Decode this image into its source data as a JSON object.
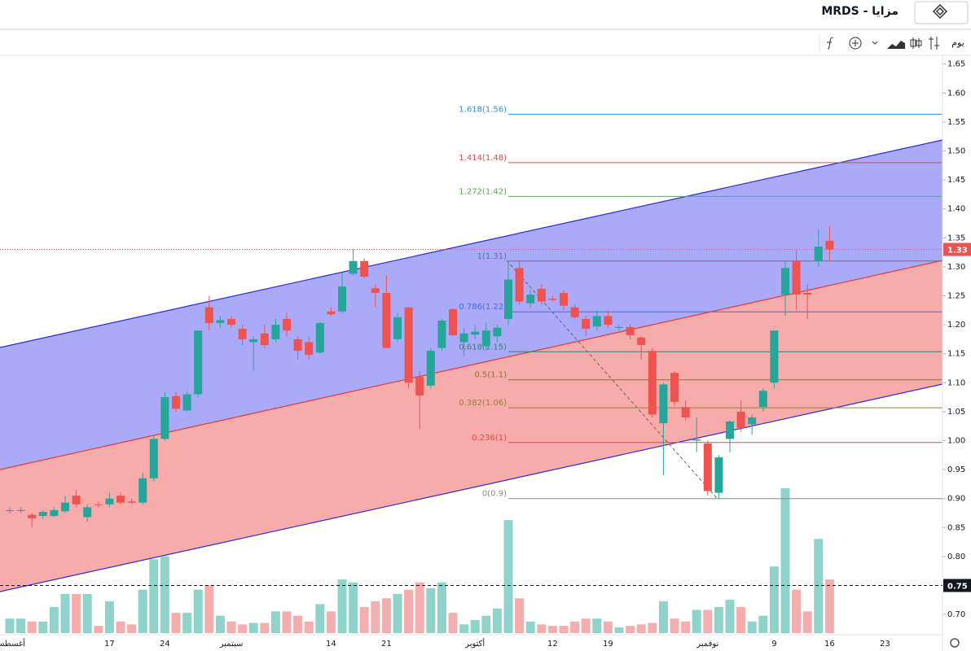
{
  "header": {
    "title": "MRDS - مزايا"
  },
  "toolbar": {
    "interval": "يوم"
  },
  "chart_data": {
    "type": "candlestick",
    "categories": [
      "أغسطس",
      null,
      null,
      null,
      null,
      null,
      null,
      null,
      null,
      "17",
      null,
      null,
      null,
      null,
      "24",
      null,
      null,
      null,
      null,
      null,
      "سبتمبر",
      null,
      null,
      null,
      null,
      null,
      null,
      null,
      null,
      "14",
      null,
      null,
      null,
      null,
      "21",
      null,
      null,
      null,
      null,
      null,
      null,
      null,
      "أكتوبر",
      null,
      null,
      null,
      null,
      null,
      null,
      "12",
      null,
      null,
      null,
      null,
      "19",
      null,
      null,
      null,
      null,
      null,
      null,
      null,
      null,
      "نوفمبر",
      null,
      null,
      null,
      null,
      null,
      "9",
      null,
      null,
      null,
      null,
      "16",
      null,
      null,
      null,
      null,
      "23"
    ],
    "open": [
      0.88,
      0.88,
      0.872,
      0.87,
      0.87,
      0.878,
      0.905,
      0.868,
      0.89,
      0.89,
      0.905,
      0.895,
      0.893,
      0.935,
      1.003,
      1.077,
      1.052,
      1.08,
      1.23,
      1.203,
      1.21,
      1.193,
      1.17,
      1.185,
      1.175,
      1.21,
      1.175,
      1.17,
      1.152,
      1.223,
      1.223,
      1.288,
      1.31,
      1.263,
      1.255,
      1.175,
      1.23,
      1.11,
      1.095,
      1.16,
      1.227,
      1.17,
      1.183,
      1.163,
      1.18,
      1.21,
      1.298,
      1.237,
      1.262,
      1.245,
      1.255,
      1.23,
      1.21,
      1.197,
      1.215,
      1.196,
      1.196,
      1.178,
      1.155,
      1.03,
      1.117,
      1.058,
      1.0,
      0.995,
      0.91,
      1.003,
      1.05,
      1.028,
      1.058,
      1.1,
      1.252,
      1.31,
      1.255,
      1.31,
      1.345,
      null,
      null,
      null,
      null,
      null
    ],
    "high": [
      0.885,
      0.885,
      0.875,
      0.88,
      0.885,
      0.905,
      0.915,
      0.89,
      0.895,
      0.91,
      0.91,
      0.9,
      0.945,
      1.01,
      1.085,
      1.085,
      1.085,
      1.19,
      1.25,
      1.215,
      1.215,
      1.2,
      1.18,
      1.2,
      1.21,
      1.22,
      1.18,
      1.18,
      1.205,
      1.23,
      1.29,
      1.33,
      1.315,
      1.27,
      1.285,
      1.22,
      1.23,
      1.12,
      1.16,
      1.21,
      1.228,
      1.195,
      1.2,
      1.205,
      1.2,
      1.31,
      1.31,
      1.26,
      1.27,
      1.25,
      1.26,
      1.235,
      1.215,
      1.225,
      1.225,
      1.2,
      1.2,
      1.18,
      1.16,
      1.1,
      1.12,
      1.07,
      1.04,
      1.0,
      0.975,
      1.035,
      1.07,
      1.045,
      1.09,
      1.19,
      1.31,
      1.33,
      1.27,
      1.365,
      1.37,
      null,
      null,
      null,
      null,
      null
    ],
    "low": [
      0.875,
      0.875,
      0.85,
      0.865,
      0.868,
      0.875,
      0.885,
      0.86,
      0.885,
      0.885,
      0.89,
      0.89,
      0.89,
      0.93,
      1.0,
      1.05,
      1.05,
      1.075,
      1.19,
      1.195,
      1.195,
      1.165,
      1.12,
      1.16,
      1.17,
      1.18,
      1.14,
      1.14,
      1.15,
      1.215,
      1.22,
      1.285,
      1.28,
      1.23,
      1.16,
      1.17,
      1.09,
      1.02,
      1.09,
      1.155,
      1.18,
      1.145,
      1.175,
      1.155,
      1.17,
      1.2,
      1.235,
      1.23,
      1.235,
      1.24,
      1.225,
      1.21,
      1.18,
      1.19,
      1.195,
      1.19,
      1.175,
      1.14,
      1.04,
      0.94,
      1.06,
      1.035,
      0.98,
      0.905,
      0.9,
      0.98,
      1.015,
      1.01,
      1.05,
      1.09,
      1.215,
      1.225,
      1.21,
      1.3,
      1.31,
      null,
      null,
      null,
      null,
      null
    ],
    "close": [
      0.88,
      0.88,
      0.866,
      0.877,
      0.88,
      0.893,
      0.89,
      0.885,
      0.889,
      0.9,
      0.893,
      0.893,
      0.935,
      1.003,
      1.075,
      1.055,
      1.08,
      1.19,
      1.203,
      1.208,
      1.2,
      1.175,
      1.175,
      1.165,
      1.2,
      1.19,
      1.155,
      1.148,
      1.203,
      1.218,
      1.266,
      1.31,
      1.283,
      1.255,
      1.16,
      1.213,
      1.1,
      1.078,
      1.155,
      1.207,
      1.182,
      1.185,
      1.188,
      1.19,
      1.195,
      1.278,
      1.24,
      1.252,
      1.24,
      1.243,
      1.233,
      1.213,
      1.193,
      1.215,
      1.2,
      1.196,
      1.182,
      1.165,
      1.045,
      1.097,
      1.067,
      1.04,
      1.002,
      0.913,
      0.971,
      1.033,
      1.022,
      1.04,
      1.086,
      1.19,
      1.298,
      1.252,
      1.252,
      1.335,
      1.33,
      null,
      null,
      null,
      null,
      null
    ],
    "volume": [
      10,
      10,
      8,
      8,
      18,
      27,
      27,
      27,
      5,
      22,
      8,
      6,
      30,
      51,
      53,
      14,
      14,
      30,
      33,
      12,
      8,
      6,
      7,
      7,
      15,
      15,
      12,
      8,
      20,
      15,
      37,
      35,
      18,
      22,
      24,
      27,
      30,
      35,
      31,
      35,
      14,
      6,
      9,
      12,
      17,
      78,
      24,
      8,
      6,
      5,
      5,
      8,
      10,
      10,
      8,
      4,
      5,
      6,
      7,
      22,
      10,
      8,
      16,
      16,
      18,
      23,
      18,
      8,
      12,
      46,
      100,
      30,
      15,
      65,
      37,
      null,
      null,
      null,
      null,
      null
    ],
    "up_color": "#26a69a",
    "down_color": "#ef5350",
    "volume_up_color": "#8fd3cb",
    "volume_down_color": "#f5aeae",
    "vlim": [
      0,
      100
    ],
    "ylim": [
      0.658,
      1.665
    ],
    "yticks": [
      {
        "value": 0.7,
        "label": "0.70"
      },
      {
        "value": 0.8,
        "label": "0.80"
      },
      {
        "value": 0.85,
        "label": "0.85"
      },
      {
        "value": 0.9,
        "label": "0.90"
      },
      {
        "value": 0.95,
        "label": "0.95"
      },
      {
        "value": 1.0,
        "label": "1.00"
      },
      {
        "value": 1.05,
        "label": "1.05"
      },
      {
        "value": 1.1,
        "label": "1.10"
      },
      {
        "value": 1.15,
        "label": "1.15"
      },
      {
        "value": 1.2,
        "label": "1.20"
      },
      {
        "value": 1.25,
        "label": "1.25"
      },
      {
        "value": 1.3,
        "label": "1.30"
      },
      {
        "value": 1.35,
        "label": "1.35"
      },
      {
        "value": 1.4,
        "label": "1.40"
      },
      {
        "value": 1.45,
        "label": "1.45"
      },
      {
        "value": 1.5,
        "label": "1.50"
      },
      {
        "value": 1.55,
        "label": "1.55"
      },
      {
        "value": 1.6,
        "label": "1.60"
      },
      {
        "value": 1.65,
        "label": "1.65"
      }
    ],
    "fib_levels": [
      {
        "label": "0(0.9)",
        "value": 0.9,
        "color": "#888888"
      },
      {
        "label": "0.236(1)",
        "value": 0.99676,
        "color": "#e04848"
      },
      {
        "label": "0.382(1.06)",
        "value": 1.05662,
        "color": "#9a7d3c"
      },
      {
        "label": "0.5(1.1)",
        "value": 1.105,
        "color": "#7c7c30"
      },
      {
        "label": "0.618(1.15)",
        "value": 1.15338,
        "color": "#3c7a7a"
      },
      {
        "label": "0.786(1.22)",
        "value": 1.22226,
        "color": "#4a6ad0"
      },
      {
        "label": "1(1.31)",
        "value": 1.31,
        "color": "#6a6a9a"
      },
      {
        "label": "1.272(1.42)",
        "value": 1.42152,
        "color": "#5aaa50"
      },
      {
        "label": "1.414(1.48)",
        "value": 1.47974,
        "color": "#e04848"
      },
      {
        "label": "1.618(1.56)",
        "value": 1.56338,
        "color": "#2e8fd8"
      }
    ],
    "markers": [
      {
        "value": 1.33,
        "color": "#ef5350"
      },
      {
        "value": 0.75,
        "color": "#131722"
      }
    ]
  }
}
